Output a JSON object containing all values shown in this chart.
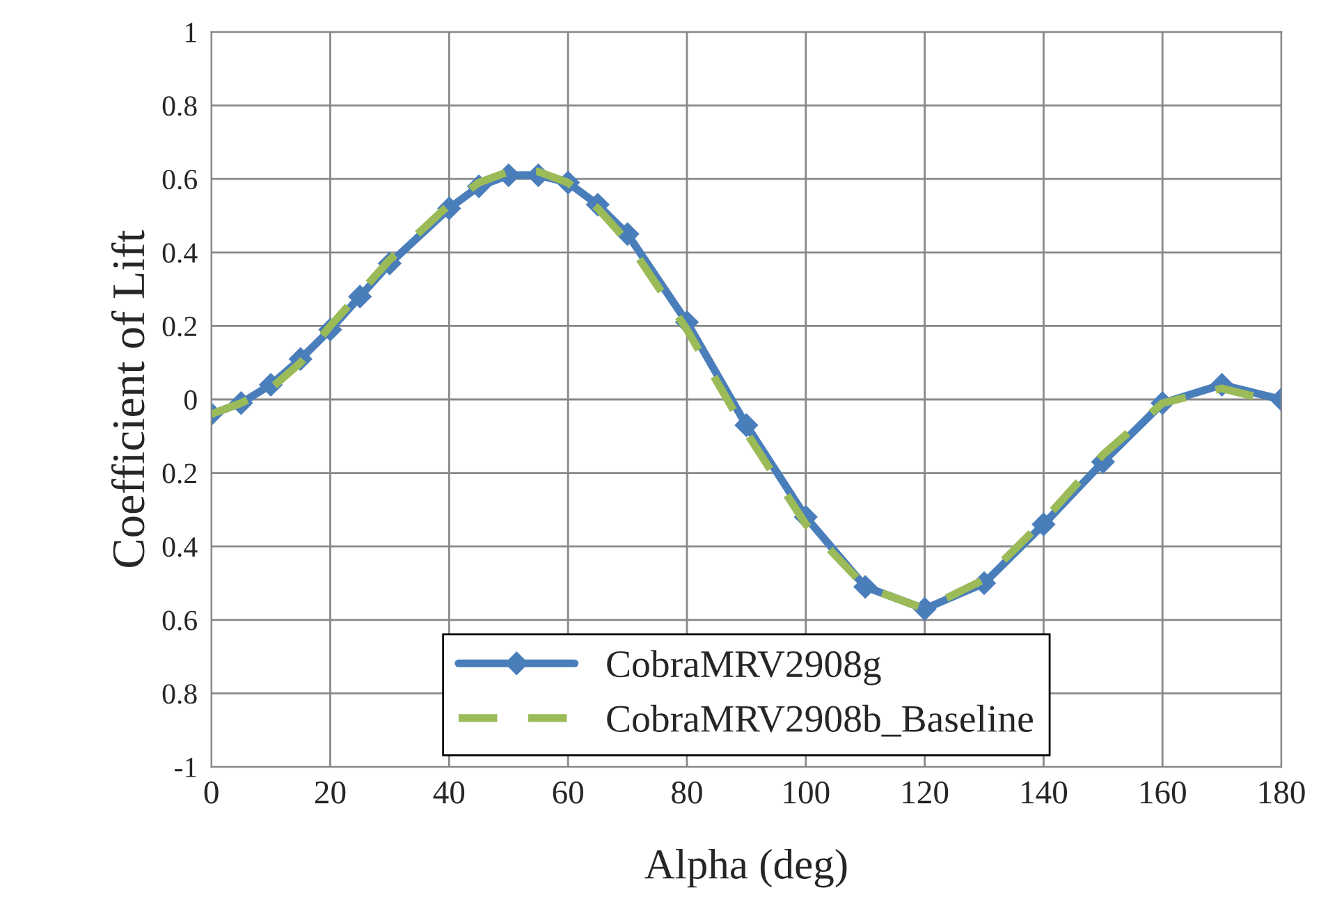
{
  "chart_data": {
    "type": "line",
    "xlabel": "Alpha (deg)",
    "ylabel": "Coefficient of Lift",
    "x": [
      0,
      5,
      10,
      15,
      20,
      25,
      30,
      40,
      45,
      50,
      55,
      60,
      65,
      70,
      80,
      90,
      100,
      110,
      120,
      130,
      140,
      150,
      160,
      170,
      180
    ],
    "series": [
      {
        "name": "CobraMRV2908g",
        "color": "#4a7ebb",
        "marker": "diamond",
        "line_style": "solid",
        "values": [
          -0.04,
          -0.01,
          0.04,
          0.11,
          0.19,
          0.28,
          0.37,
          0.52,
          0.58,
          0.61,
          0.61,
          0.59,
          0.53,
          0.45,
          0.21,
          -0.07,
          -0.32,
          -0.51,
          -0.57,
          -0.5,
          -0.34,
          -0.17,
          -0.01,
          0.04,
          0.0
        ]
      },
      {
        "name": "CobraMRV2908b_Baseline",
        "color": "#9bbb59",
        "marker": "none",
        "line_style": "dashed",
        "values": [
          -0.04,
          -0.01,
          0.03,
          0.1,
          0.2,
          0.29,
          0.38,
          0.53,
          0.59,
          0.62,
          0.62,
          0.59,
          0.52,
          0.43,
          0.19,
          -0.09,
          -0.34,
          -0.51,
          -0.57,
          -0.49,
          -0.33,
          -0.15,
          -0.01,
          0.03,
          -0.01
        ]
      }
    ],
    "xlim": [
      0,
      180
    ],
    "xticks": [
      0,
      20,
      40,
      60,
      80,
      100,
      120,
      140,
      160,
      180
    ],
    "ylim": [
      -1,
      1
    ],
    "yticks": [
      -1,
      {
        "value": -0.8,
        "label": "0.8"
      },
      {
        "value": -0.6,
        "label": "0.6"
      },
      {
        "value": -0.4,
        "label": "0.4"
      },
      {
        "value": -0.2,
        "label": "0.2"
      },
      0,
      0.2,
      0.4,
      0.6,
      0.8,
      1
    ],
    "grid": true,
    "legend": "bottom"
  }
}
